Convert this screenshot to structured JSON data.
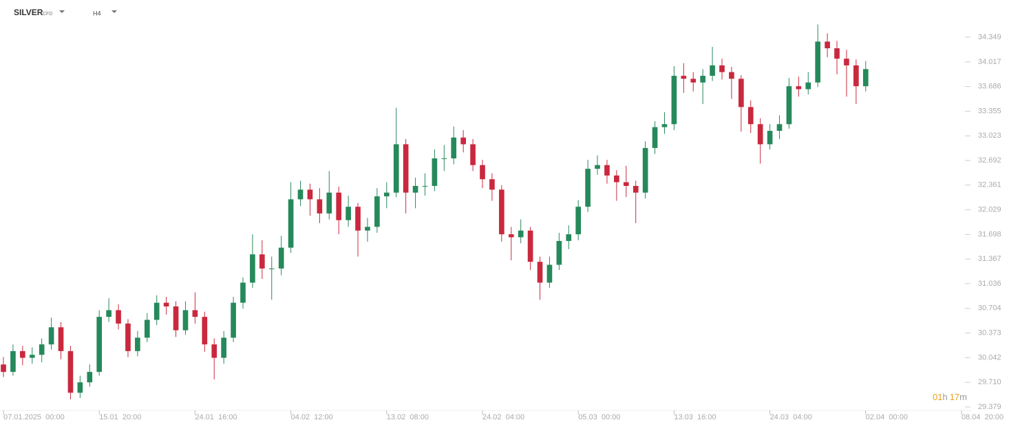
{
  "header": {
    "symbol": "SILVER",
    "instrument": "CFD",
    "timeframe": "H4"
  },
  "countdown": {
    "hours": "01",
    "hours_unit": "h",
    "minutes": "17",
    "minutes_unit": "m"
  },
  "chart_data": {
    "type": "candlestick",
    "up_color": "#26895b",
    "down_color": "#c9283e",
    "open": [
      29.95,
      29.85,
      30.13,
      30.04,
      30.08,
      30.22,
      30.45,
      30.13,
      29.57,
      29.71,
      29.85,
      30.59,
      30.68,
      30.5,
      30.13,
      30.31,
      30.55,
      30.78,
      30.73,
      30.41,
      30.68,
      30.59,
      30.22,
      30.04,
      30.31,
      30.78,
      31.05,
      31.43,
      31.24,
      31.24,
      31.52,
      32.17,
      32.3,
      32.17,
      31.98,
      32.26,
      31.89,
      32.07,
      31.75,
      31.8,
      32.21,
      32.26,
      32.91,
      32.26,
      32.35,
      32.35,
      32.72,
      32.72,
      33.0,
      32.91,
      32.63,
      32.44,
      32.3,
      31.7,
      31.66,
      31.75,
      31.33,
      31.05,
      31.29,
      31.61,
      31.7,
      32.07,
      32.58,
      32.63,
      32.49,
      32.4,
      32.35,
      32.26,
      32.86,
      33.14,
      33.18,
      33.83,
      33.79,
      33.74,
      33.83,
      33.97,
      33.88,
      33.79,
      33.41,
      33.18,
      32.91,
      33.09,
      33.18,
      33.69,
      33.65,
      33.74,
      34.29,
      34.2,
      34.06,
      33.97,
      33.69
    ],
    "high": [
      30.05,
      30.22,
      30.2,
      30.18,
      30.3,
      30.58,
      30.52,
      30.2,
      29.8,
      29.95,
      30.68,
      30.84,
      30.76,
      30.56,
      30.4,
      30.64,
      30.88,
      30.86,
      30.8,
      30.8,
      30.92,
      30.66,
      30.3,
      30.4,
      30.86,
      31.12,
      31.7,
      31.62,
      31.4,
      31.68,
      32.4,
      32.42,
      32.38,
      32.32,
      32.55,
      32.34,
      32.22,
      32.12,
      31.92,
      32.32,
      32.4,
      33.4,
      32.98,
      32.46,
      32.52,
      32.84,
      32.9,
      33.15,
      33.1,
      32.98,
      32.7,
      32.52,
      32.36,
      31.8,
      31.9,
      31.8,
      31.4,
      31.4,
      31.72,
      31.82,
      32.16,
      32.7,
      32.76,
      32.7,
      32.56,
      32.62,
      32.42,
      32.95,
      33.22,
      33.34,
      33.96,
      34.0,
      33.88,
      33.92,
      34.22,
      34.06,
      33.95,
      33.84,
      33.5,
      33.26,
      33.18,
      33.3,
      33.8,
      33.82,
      33.88,
      34.52,
      34.4,
      34.3,
      34.18,
      34.05,
      34.03
    ],
    "low": [
      29.78,
      29.8,
      29.94,
      29.96,
      29.98,
      30.15,
      30.02,
      29.48,
      29.5,
      29.65,
      29.8,
      30.52,
      30.42,
      30.05,
      30.06,
      30.25,
      30.48,
      30.62,
      30.32,
      30.35,
      30.5,
      30.12,
      29.75,
      29.96,
      30.25,
      30.7,
      30.98,
      31.1,
      30.82,
      31.15,
      31.45,
      32.08,
      31.95,
      31.85,
      31.9,
      31.7,
      31.8,
      31.4,
      31.6,
      31.72,
      32.05,
      32.2,
      31.98,
      32.05,
      32.22,
      32.28,
      32.55,
      32.64,
      32.8,
      32.55,
      32.32,
      32.15,
      31.6,
      31.35,
      31.58,
      31.22,
      30.82,
      30.98,
      31.22,
      31.5,
      31.62,
      32.0,
      32.5,
      32.38,
      32.15,
      32.2,
      31.85,
      32.18,
      32.78,
      33.05,
      33.1,
      33.6,
      33.62,
      33.45,
      33.76,
      33.78,
      33.52,
      33.08,
      33.06,
      32.65,
      32.84,
      32.98,
      33.12,
      33.55,
      33.58,
      33.68,
      34.08,
      33.85,
      33.55,
      33.45,
      33.62
    ],
    "close": [
      29.85,
      30.13,
      30.04,
      30.08,
      30.22,
      30.45,
      30.13,
      29.57,
      29.71,
      29.85,
      30.59,
      30.68,
      30.5,
      30.13,
      30.31,
      30.55,
      30.78,
      30.73,
      30.41,
      30.68,
      30.59,
      30.22,
      30.04,
      30.31,
      30.78,
      31.05,
      31.43,
      31.24,
      31.24,
      31.52,
      32.17,
      32.3,
      32.17,
      31.98,
      32.26,
      31.89,
      32.07,
      31.75,
      31.8,
      32.21,
      32.26,
      32.91,
      32.26,
      32.35,
      32.35,
      32.72,
      32.72,
      33.0,
      32.91,
      32.63,
      32.44,
      32.3,
      31.7,
      31.66,
      31.75,
      31.33,
      31.05,
      31.29,
      31.61,
      31.7,
      32.07,
      32.58,
      32.63,
      32.49,
      32.4,
      32.35,
      32.26,
      32.86,
      33.14,
      33.18,
      33.83,
      33.79,
      33.74,
      33.83,
      33.97,
      33.88,
      33.79,
      33.41,
      33.18,
      32.91,
      33.09,
      33.18,
      33.69,
      33.65,
      33.74,
      34.29,
      34.2,
      34.06,
      33.97,
      33.69,
      33.92
    ],
    "xlim": [
      0,
      100
    ],
    "xticks": [
      {
        "value": 0,
        "label": "07.01.2025  00:00"
      },
      {
        "value": 10,
        "label": "15.01  20:00"
      },
      {
        "value": 20,
        "label": "24.01  16:00"
      },
      {
        "value": 30,
        "label": "04.02  12:00"
      },
      {
        "value": 40,
        "label": "13.02  08:00"
      },
      {
        "value": 50,
        "label": "24.02  04:00"
      },
      {
        "value": 60,
        "label": "05.03  00:00"
      },
      {
        "value": 70,
        "label": "13.03  16:00"
      },
      {
        "value": 80,
        "label": "24.03  04:00"
      },
      {
        "value": 90,
        "label": "02.04  00:00"
      },
      {
        "value": 100,
        "label": "08.04  20:00"
      }
    ],
    "ylim": [
      29.379,
      34.349
    ],
    "yticks": [
      34.349,
      34.017,
      33.686,
      33.355,
      33.023,
      32.692,
      32.361,
      32.029,
      31.698,
      31.367,
      31.036,
      30.704,
      30.373,
      30.042,
      {
        "value": 29.71,
        "label": "29.710"
      },
      29.379
    ]
  }
}
